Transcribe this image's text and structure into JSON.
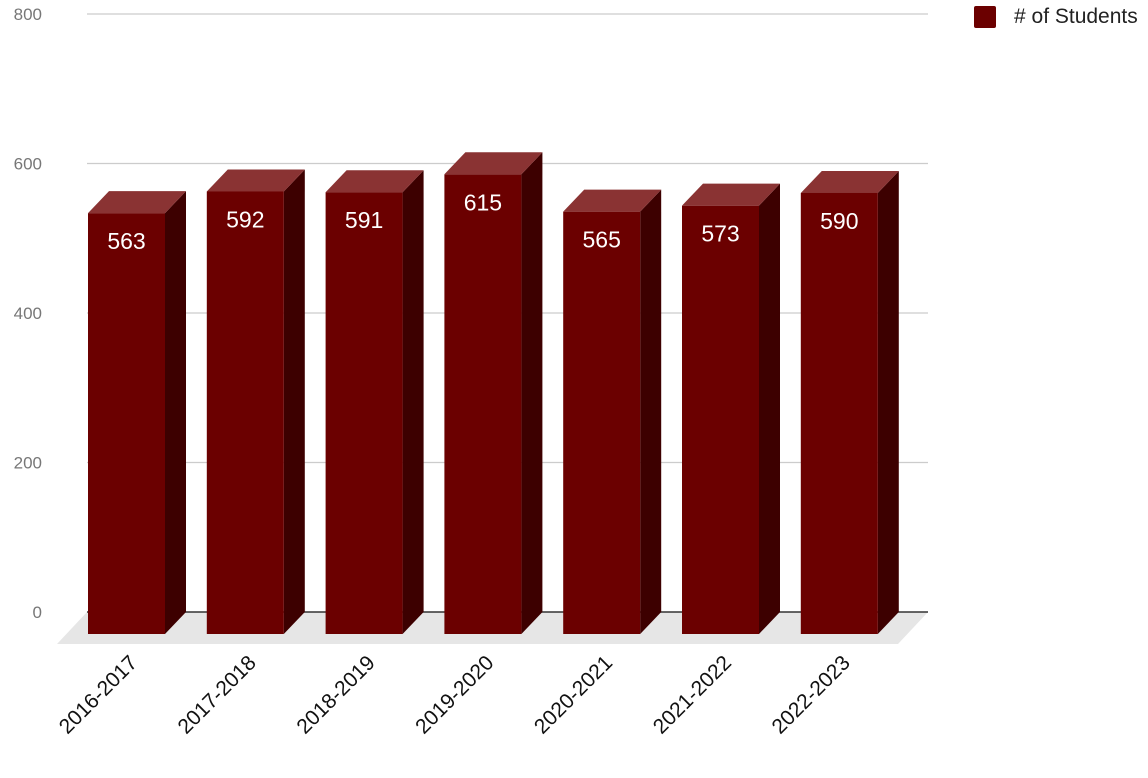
{
  "chart_data": {
    "type": "bar",
    "categories": [
      "2016-2017",
      "2017-2018",
      "2018-2019",
      "2019-2020",
      "2020-2021",
      "2021-2022",
      "2022-2023"
    ],
    "series": [
      {
        "name": "# of Students",
        "values": [
          563,
          592,
          591,
          615,
          565,
          573,
          590
        ]
      }
    ],
    "title": "",
    "xlabel": "",
    "ylabel": "",
    "ylim": [
      0,
      800
    ],
    "yticks": [
      "0",
      "200",
      "400",
      "600",
      "800"
    ],
    "grid": true,
    "legend_position": "top-right",
    "style": "3d-column",
    "colors": {
      "bar_front": "#6b0000",
      "bar_top": "#8a3333",
      "bar_side": "#3d0000",
      "gridline": "#cccccc",
      "axis": "#333333",
      "floor": "#e6e6e6"
    }
  },
  "legend": {
    "label": "# of Students",
    "color": "#6b0000"
  }
}
